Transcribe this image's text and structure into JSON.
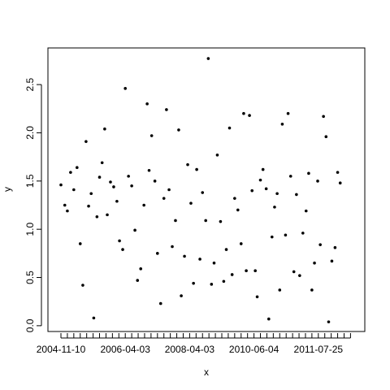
{
  "chart_data": {
    "type": "scatter",
    "title": "",
    "xlabel": "x",
    "ylabel": "y",
    "ylim": [
      -0.06,
      2.88
    ],
    "y_ticks": [
      "0.0",
      "0.5",
      "1.0",
      "1.5",
      "2.0",
      "2.5"
    ],
    "x_tick_labels": [
      "2004-11-10",
      "2006-04-03",
      "2008-04-03",
      "2010-06-04",
      "2011-07-25"
    ],
    "x_label_indices": [
      0,
      10,
      20,
      30,
      40
    ],
    "x_tick_count": 46,
    "point_color": "#000000",
    "series": [
      {
        "name": "y",
        "points": [
          [
            0.0,
            1.46
          ],
          [
            0.6,
            1.25
          ],
          [
            1.0,
            1.19
          ],
          [
            1.5,
            1.59
          ],
          [
            2.0,
            1.41
          ],
          [
            2.5,
            1.64
          ],
          [
            3.0,
            0.85
          ],
          [
            3.4,
            0.42
          ],
          [
            3.9,
            1.91
          ],
          [
            4.3,
            1.24
          ],
          [
            4.7,
            1.37
          ],
          [
            5.1,
            0.08
          ],
          [
            5.6,
            1.13
          ],
          [
            6.0,
            1.54
          ],
          [
            6.4,
            1.69
          ],
          [
            6.8,
            2.04
          ],
          [
            7.2,
            1.15
          ],
          [
            7.7,
            1.49
          ],
          [
            8.2,
            1.44
          ],
          [
            8.7,
            1.29
          ],
          [
            9.1,
            0.88
          ],
          [
            9.6,
            0.79
          ],
          [
            10.0,
            2.46
          ],
          [
            10.5,
            1.55
          ],
          [
            11.0,
            1.45
          ],
          [
            11.5,
            0.99
          ],
          [
            11.9,
            0.47
          ],
          [
            12.4,
            0.59
          ],
          [
            12.9,
            1.25
          ],
          [
            13.4,
            2.3
          ],
          [
            13.7,
            1.61
          ],
          [
            14.1,
            1.97
          ],
          [
            14.6,
            1.5
          ],
          [
            15.0,
            0.75
          ],
          [
            15.5,
            0.23
          ],
          [
            16.0,
            1.32
          ],
          [
            16.4,
            2.24
          ],
          [
            16.8,
            1.41
          ],
          [
            17.3,
            0.82
          ],
          [
            17.8,
            1.09
          ],
          [
            18.3,
            2.03
          ],
          [
            18.7,
            0.31
          ],
          [
            19.2,
            0.72
          ],
          [
            19.7,
            1.67
          ],
          [
            20.2,
            1.27
          ],
          [
            20.6,
            0.44
          ],
          [
            21.1,
            1.62
          ],
          [
            21.6,
            0.69
          ],
          [
            22.0,
            1.38
          ],
          [
            22.5,
            1.09
          ],
          [
            22.9,
            2.77
          ],
          [
            23.4,
            0.43
          ],
          [
            23.8,
            0.65
          ],
          [
            24.3,
            1.77
          ],
          [
            24.8,
            1.08
          ],
          [
            25.3,
            0.46
          ],
          [
            25.7,
            0.79
          ],
          [
            26.2,
            2.05
          ],
          [
            26.6,
            0.53
          ],
          [
            27.0,
            1.32
          ],
          [
            27.5,
            1.2
          ],
          [
            28.0,
            0.85
          ],
          [
            28.4,
            2.2
          ],
          [
            28.8,
            0.57
          ],
          [
            29.3,
            2.18
          ],
          [
            29.7,
            1.4
          ],
          [
            30.2,
            0.57
          ],
          [
            30.5,
            0.3
          ],
          [
            31.0,
            1.51
          ],
          [
            31.4,
            1.62
          ],
          [
            31.9,
            1.42
          ],
          [
            32.3,
            0.07
          ],
          [
            32.8,
            0.92
          ],
          [
            33.2,
            1.23
          ],
          [
            33.6,
            1.37
          ],
          [
            34.0,
            0.37
          ],
          [
            34.4,
            2.09
          ],
          [
            34.9,
            0.94
          ],
          [
            35.3,
            2.2
          ],
          [
            35.7,
            1.55
          ],
          [
            36.2,
            0.56
          ],
          [
            36.6,
            1.36
          ],
          [
            37.1,
            0.52
          ],
          [
            37.6,
            0.96
          ],
          [
            38.1,
            1.19
          ],
          [
            38.5,
            1.58
          ],
          [
            39.0,
            0.37
          ],
          [
            39.4,
            0.65
          ],
          [
            39.9,
            1.5
          ],
          [
            40.3,
            0.84
          ],
          [
            40.8,
            2.17
          ],
          [
            41.2,
            1.96
          ],
          [
            41.6,
            0.04
          ],
          [
            42.1,
            0.67
          ],
          [
            42.6,
            0.81
          ],
          [
            43.0,
            1.59
          ],
          [
            43.4,
            1.48
          ]
        ]
      }
    ]
  }
}
